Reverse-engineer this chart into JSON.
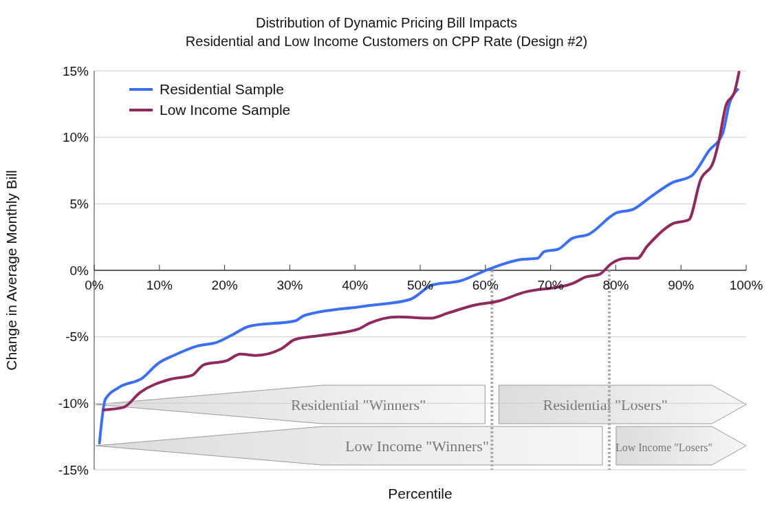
{
  "chart_data": {
    "type": "line",
    "title": "Distribution of Dynamic Pricing Bill Impacts",
    "subtitle": "Residential and Low Income Customers on CPP Rate (Design #2)",
    "xlabel": "Percentile",
    "ylabel": "Change in Average Monthly Bill",
    "xlim": [
      0,
      100
    ],
    "xticks": [
      {
        "value": 0,
        "label": "0%"
      },
      {
        "value": 10,
        "label": "10%"
      },
      {
        "value": 20,
        "label": "20%"
      },
      {
        "value": 30,
        "label": "30%"
      },
      {
        "value": 40,
        "label": "40%"
      },
      {
        "value": 50,
        "label": "50%"
      },
      {
        "value": 60,
        "label": "60%"
      },
      {
        "value": 70,
        "label": "70%"
      },
      {
        "value": 80,
        "label": "80%"
      },
      {
        "value": 90,
        "label": "90%"
      },
      {
        "value": 100,
        "label": "100%"
      }
    ],
    "ylim": [
      -15,
      15
    ],
    "yticks": [
      {
        "value": -15,
        "label": "-15%"
      },
      {
        "value": -10,
        "label": "-10%"
      },
      {
        "value": -5,
        "label": "-5%"
      },
      {
        "value": 0,
        "label": "0%"
      },
      {
        "value": 5,
        "label": "5%"
      },
      {
        "value": 10,
        "label": "10%"
      },
      {
        "value": 15,
        "label": "15%"
      }
    ],
    "series": [
      {
        "name": "Residential Sample",
        "color": "#3d6ff5",
        "x": [
          0.8,
          1.7,
          3.8,
          7.4,
          9.8,
          12.2,
          15.8,
          18.9,
          21,
          23.8,
          30.8,
          32.2,
          41.4,
          48.4,
          51.9,
          56.1,
          60.6,
          65.3,
          68,
          69,
          71.2,
          73.3,
          75.8,
          80,
          82.7,
          85.3,
          88.7,
          91.6,
          94.3,
          96.4,
          97.4,
          98.7
        ],
        "values": [
          -13.0,
          -9.7,
          -8.8,
          -8.1,
          -7.0,
          -6.4,
          -5.7,
          -5.4,
          -4.9,
          -4.2,
          -3.8,
          -3.4,
          -2.7,
          -2.2,
          -1.1,
          -0.8,
          0.1,
          0.8,
          0.9,
          1.4,
          1.6,
          2.4,
          2.7,
          4.3,
          4.6,
          5.5,
          6.6,
          7.1,
          9.0,
          10.3,
          12.5,
          13.6
        ]
      },
      {
        "name": "Low Income Sample",
        "color": "#8e2a5e",
        "x": [
          1.4,
          4.5,
          7,
          11.6,
          15,
          16.8,
          20.3,
          22.4,
          24.8,
          28.7,
          30.8,
          34.7,
          40.6,
          42.1,
          46.6,
          51.6,
          54.3,
          58.5,
          62.1,
          65.6,
          73.3,
          75.4,
          77.5,
          79.3,
          81.7,
          83.3,
          84.8,
          88.7,
          91.2,
          93,
          95,
          95.8,
          96.9,
          98.2,
          98.9
        ],
        "values": [
          -10.5,
          -10.3,
          -9.2,
          -8.2,
          -7.9,
          -7.1,
          -6.8,
          -6.3,
          -6.4,
          -5.9,
          -5.2,
          -4.9,
          -4.4,
          -4.0,
          -3.5,
          -3.6,
          -3.2,
          -2.6,
          -2.3,
          -1.7,
          -1.0,
          -0.5,
          -0.3,
          0.5,
          0.9,
          0.9,
          1.8,
          3.5,
          3.8,
          6.8,
          8.2,
          9.7,
          12.4,
          13.4,
          14.9
        ]
      }
    ],
    "ref_lines": [
      {
        "axis": "x",
        "value": 61,
        "color": "#aaaaaa",
        "line_style": "dotted"
      },
      {
        "axis": "x",
        "value": 79,
        "color": "#aaaaaa",
        "line_style": "dotted"
      }
    ],
    "annotations": [
      "Residential \"Winners\"",
      "Residential \"Losers\"",
      "Low Income \"Winners\"",
      "Low Income \"Losers\""
    ],
    "grid": "y",
    "legend": "top left",
    "marker": "none",
    "line_style": "solid"
  }
}
